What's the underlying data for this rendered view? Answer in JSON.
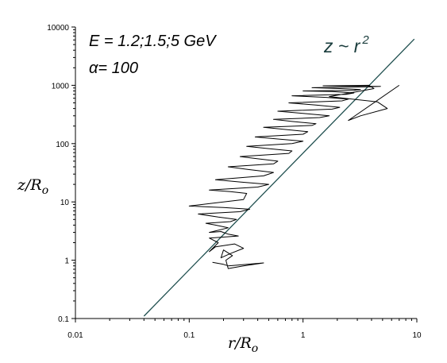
{
  "chart_data": {
    "type": "line",
    "title": "",
    "xlabel": "r/R",
    "xlabel_sub": "o",
    "ylabel": "z/R",
    "ylabel_sub": "o",
    "xscale": "log",
    "yscale": "log",
    "xlim": [
      0.01,
      10
    ],
    "ylim": [
      0.1,
      10000
    ],
    "x_ticks": [
      0.01,
      0.1,
      1,
      10
    ],
    "x_tick_labels": [
      "0.01",
      "0.1",
      "1",
      "10"
    ],
    "y_ticks": [
      0.1,
      1,
      10,
      100,
      1000,
      10000
    ],
    "y_tick_labels": [
      "0.1",
      "1",
      "10",
      "100",
      "1000",
      "10000"
    ],
    "grid": false,
    "annotations": {
      "energy": "E = 1.2;1.5;5 GeV",
      "alpha": "α= 100",
      "fit": "z ~ r",
      "fit_exponent": "2"
    },
    "series": [
      {
        "kind": "fit",
        "color": "#1f4f4f",
        "x": [
          0.04,
          0.4,
          4,
          9.5
        ],
        "y": [
          0.11,
          11,
          1100,
          6200
        ]
      },
      {
        "kind": "trajectory",
        "color": "#000000",
        "x": [
          0.16,
          0.2,
          0.22,
          0.45,
          0.3,
          0.22,
          0.21,
          0.24,
          0.2,
          0.19,
          0.23,
          0.3,
          0.25,
          0.17,
          0.15,
          0.18,
          0.15,
          0.27,
          0.22,
          0.19,
          0.15,
          0.22,
          0.17,
          0.14,
          0.23,
          0.26,
          0.18,
          0.12,
          0.28,
          0.34,
          0.2,
          0.1,
          0.3,
          0.32,
          0.23,
          0.15,
          0.4,
          0.5,
          0.28,
          0.17,
          0.45,
          0.55,
          0.33,
          0.22,
          0.55,
          0.6,
          0.4,
          0.28,
          0.75,
          0.8,
          0.5,
          0.32,
          0.8,
          1.0,
          0.6,
          0.38,
          1.0,
          1.1,
          0.7,
          0.45,
          1.2,
          1.3,
          0.8,
          0.55,
          1.4,
          1.7,
          1.0,
          0.6,
          1.8,
          2.1,
          1.3,
          0.75,
          2.2,
          2.5,
          1.6,
          0.8,
          2.4,
          2.8,
          1.8,
          1.0,
          2.8,
          3.2,
          2.1,
          1.2,
          3.5,
          4.8,
          2.5,
          1.5,
          3.8,
          4.2,
          2.8,
          1.7,
          4.5,
          5.5,
          3.2,
          2.5,
          7.0
        ],
        "y": [
          0.92,
          0.85,
          0.8,
          0.9,
          0.8,
          0.72,
          1.0,
          1.2,
          1.5,
          1.1,
          1.3,
          1.6,
          1.9,
          1.7,
          1.4,
          2.0,
          2.4,
          2.6,
          2.8,
          3.1,
          3.0,
          3.6,
          4.0,
          4.3,
          4.6,
          5.0,
          5.5,
          6.2,
          6.8,
          7.5,
          8.0,
          8.5,
          11,
          14,
          15,
          16,
          18,
          20,
          22,
          24,
          28,
          32,
          36,
          40,
          45,
          50,
          55,
          60,
          68,
          75,
          82,
          90,
          100,
          110,
          120,
          130,
          145,
          160,
          175,
          190,
          205,
          220,
          240,
          260,
          280,
          300,
          330,
          360,
          390,
          420,
          460,
          500,
          540,
          580,
          620,
          660,
          700,
          740,
          780,
          800,
          820,
          850,
          880,
          910,
          940,
          960,
          970,
          980,
          1000,
          880,
          760,
          640,
          520,
          400,
          300,
          250,
          1000
        ]
      }
    ]
  }
}
